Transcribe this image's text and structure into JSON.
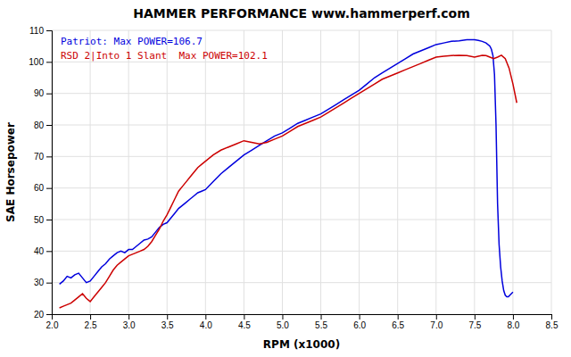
{
  "chart_data": {
    "type": "line",
    "title": "HAMMER PERFORMANCE www.hammerperf.com",
    "x_label": "RPM (x1000)",
    "y_label": "SAE Horsepower",
    "xlim": [
      2.0,
      8.5
    ],
    "ylim": [
      20,
      110
    ],
    "xticks": [
      {
        "value": 2.0,
        "label": "2.0"
      },
      2.5,
      {
        "value": 3.0,
        "label": "3.0"
      },
      3.5,
      {
        "value": 4.0,
        "label": "4.0"
      },
      4.5,
      {
        "value": 5.0,
        "label": "5.0"
      },
      5.5,
      {
        "value": 6.0,
        "label": "6.0"
      },
      6.5,
      {
        "value": 7.0,
        "label": "7.0"
      },
      7.5,
      {
        "value": 8.0,
        "label": "8.0"
      },
      8.5
    ],
    "yticks": [
      20,
      30,
      40,
      50,
      60,
      70,
      80,
      90,
      100,
      110
    ],
    "grid": true,
    "legend": "upper left",
    "series": [
      {
        "name": "Patriot: Max POWER=106.7",
        "color": "#0000dd",
        "x": [
          2.1,
          2.15,
          2.2,
          2.25,
          2.3,
          2.35,
          2.4,
          2.45,
          2.5,
          2.55,
          2.6,
          2.65,
          2.7,
          2.75,
          2.8,
          2.85,
          2.9,
          2.95,
          3.0,
          3.05,
          3.1,
          3.15,
          3.2,
          3.25,
          3.3,
          3.35,
          3.4,
          3.45,
          3.5,
          3.55,
          3.6,
          3.65,
          3.7,
          3.75,
          3.8,
          3.85,
          3.9,
          3.95,
          4.0,
          4.1,
          4.2,
          4.3,
          4.4,
          4.5,
          4.6,
          4.7,
          4.8,
          4.9,
          5.0,
          5.1,
          5.2,
          5.3,
          5.4,
          5.5,
          5.6,
          5.7,
          5.8,
          5.9,
          6.0,
          6.1,
          6.2,
          6.3,
          6.4,
          6.5,
          6.6,
          6.7,
          6.8,
          6.9,
          7.0,
          7.1,
          7.2,
          7.3,
          7.4,
          7.5,
          7.55,
          7.6,
          7.65,
          7.7,
          7.72,
          7.74,
          7.76,
          7.78,
          7.8,
          7.82,
          7.84,
          7.86,
          7.88,
          7.9,
          7.92,
          7.94,
          7.96,
          7.98,
          8.0
        ],
        "values": [
          29.5,
          30.5,
          32.0,
          31.5,
          32.5,
          33.0,
          31.5,
          30.0,
          30.5,
          32.0,
          33.5,
          35.0,
          36.0,
          37.5,
          38.5,
          39.5,
          40.0,
          39.5,
          40.5,
          40.5,
          41.5,
          42.5,
          43.5,
          43.8,
          44.5,
          46.0,
          47.5,
          48.5,
          49.0,
          50.5,
          52.0,
          53.5,
          54.5,
          55.5,
          56.5,
          57.5,
          58.5,
          59.0,
          59.5,
          62.0,
          64.5,
          66.5,
          68.5,
          70.5,
          72.0,
          73.5,
          75.0,
          76.5,
          77.5,
          79.0,
          80.5,
          81.5,
          82.5,
          83.5,
          85.0,
          86.5,
          88.0,
          89.5,
          91.0,
          93.0,
          95.0,
          96.5,
          98.0,
          99.5,
          101.0,
          102.5,
          103.5,
          104.5,
          105.5,
          106.0,
          106.5,
          106.7,
          107.0,
          107.0,
          106.8,
          106.5,
          106.0,
          105.0,
          104.0,
          102.0,
          96.0,
          80.0,
          55.0,
          42.0,
          35.0,
          30.5,
          27.5,
          26.0,
          25.5,
          25.5,
          26.0,
          26.5,
          27.0
        ]
      },
      {
        "name": "RSD 2|Into 1 Slant  Max POWER=102.1",
        "color": "#cc0000",
        "x": [
          2.1,
          2.15,
          2.2,
          2.25,
          2.3,
          2.35,
          2.4,
          2.45,
          2.5,
          2.55,
          2.6,
          2.65,
          2.7,
          2.75,
          2.8,
          2.85,
          2.9,
          2.95,
          3.0,
          3.05,
          3.1,
          3.15,
          3.2,
          3.25,
          3.3,
          3.35,
          3.4,
          3.45,
          3.5,
          3.55,
          3.6,
          3.65,
          3.7,
          3.75,
          3.8,
          3.85,
          3.9,
          3.95,
          4.0,
          4.1,
          4.2,
          4.3,
          4.4,
          4.5,
          4.6,
          4.7,
          4.8,
          4.9,
          5.0,
          5.1,
          5.2,
          5.3,
          5.4,
          5.5,
          5.6,
          5.7,
          5.8,
          5.9,
          6.0,
          6.1,
          6.2,
          6.3,
          6.4,
          6.5,
          6.6,
          6.7,
          6.8,
          6.9,
          7.0,
          7.1,
          7.2,
          7.3,
          7.4,
          7.5,
          7.55,
          7.6,
          7.65,
          7.7,
          7.75,
          7.8,
          7.85,
          7.9,
          7.95,
          8.0,
          8.05
        ],
        "values": [
          22.0,
          22.5,
          23.0,
          23.5,
          24.5,
          25.5,
          26.5,
          25.0,
          24.0,
          25.5,
          27.0,
          28.5,
          30.0,
          32.0,
          34.0,
          35.5,
          36.5,
          37.5,
          38.5,
          39.0,
          39.5,
          40.0,
          40.5,
          41.5,
          43.0,
          45.0,
          47.0,
          49.5,
          51.5,
          54.0,
          56.5,
          59.0,
          60.5,
          62.0,
          63.5,
          65.0,
          66.5,
          67.5,
          68.5,
          70.5,
          72.0,
          73.0,
          74.0,
          75.0,
          74.5,
          74.0,
          74.5,
          75.5,
          76.5,
          78.0,
          79.5,
          80.5,
          81.5,
          82.5,
          84.0,
          85.5,
          87.0,
          88.5,
          90.0,
          91.5,
          93.0,
          94.5,
          95.5,
          96.5,
          97.5,
          98.5,
          99.5,
          100.5,
          101.5,
          101.8,
          102.0,
          102.1,
          102.0,
          101.5,
          101.8,
          102.1,
          102.0,
          101.5,
          101.0,
          101.5,
          102.1,
          101.0,
          98.0,
          93.0,
          87.0
        ]
      }
    ]
  }
}
